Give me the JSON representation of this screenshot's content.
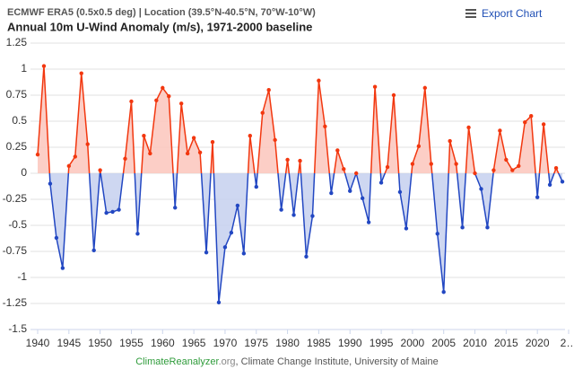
{
  "chart_data": {
    "type": "line",
    "header": "ECMWF ERA5 (0.5x0.5 deg) | Location (39.5°N-40.5°N, 70°W-10°W)",
    "title": "Annual 10m U-Wind Anomaly (m/s), 1971-2000 baseline",
    "export_label": "Export Chart",
    "credit_site": "ClimateReanalyzer",
    "credit_tld": ".org",
    "credit_rest": ", Climate Change Institute, University of Maine",
    "x": [
      1940,
      1941,
      1942,
      1943,
      1944,
      1945,
      1946,
      1947,
      1948,
      1949,
      1950,
      1951,
      1952,
      1953,
      1954,
      1955,
      1956,
      1957,
      1958,
      1959,
      1960,
      1961,
      1962,
      1963,
      1964,
      1965,
      1966,
      1967,
      1968,
      1969,
      1970,
      1971,
      1972,
      1973,
      1974,
      1975,
      1976,
      1977,
      1978,
      1979,
      1980,
      1981,
      1982,
      1983,
      1984,
      1985,
      1986,
      1987,
      1988,
      1989,
      1990,
      1991,
      1992,
      1993,
      1994,
      1995,
      1996,
      1997,
      1998,
      1999,
      2000,
      2001,
      2002,
      2003,
      2004,
      2005,
      2006,
      2007,
      2008,
      2009,
      2010,
      2011,
      2012,
      2013,
      2014,
      2015,
      2016,
      2017,
      2018,
      2019,
      2020,
      2021,
      2022,
      2023,
      2024
    ],
    "values": [
      0.18,
      1.03,
      -0.1,
      -0.62,
      -0.91,
      0.07,
      0.16,
      0.96,
      0.28,
      -0.74,
      0.03,
      -0.38,
      -0.37,
      -0.35,
      0.14,
      0.69,
      -0.58,
      0.36,
      0.19,
      0.7,
      0.82,
      0.74,
      -0.33,
      0.67,
      0.19,
      0.34,
      0.2,
      -0.76,
      0.3,
      -1.24,
      -0.71,
      -0.57,
      -0.31,
      -0.77,
      0.36,
      -0.13,
      0.58,
      0.8,
      0.32,
      -0.35,
      0.13,
      -0.4,
      0.12,
      -0.8,
      -0.41,
      0.89,
      0.45,
      -0.19,
      0.22,
      0.04,
      -0.17,
      0.0,
      -0.24,
      -0.47,
      0.83,
      -0.09,
      0.06,
      0.75,
      -0.18,
      -0.53,
      0.09,
      0.26,
      0.82,
      0.09,
      -0.58,
      -1.14,
      0.31,
      0.09,
      -0.52,
      0.44,
      0.0,
      -0.15,
      -0.52,
      0.03,
      0.41,
      0.13,
      0.03,
      0.07,
      0.49,
      0.55,
      -0.23,
      0.47,
      -0.11,
      0.05,
      -0.08
    ],
    "positive_color": "#f2370f",
    "negative_color": "#2247c2",
    "positive_fill": "#fcc6bc",
    "negative_fill": "#c6d0ee",
    "xlim": [
      1940,
      2025
    ],
    "xticks": [
      1940,
      1945,
      1950,
      1955,
      1960,
      1965,
      1970,
      1975,
      1980,
      1985,
      1990,
      1995,
      2000,
      2005,
      2010,
      2015,
      2020,
      {
        "value": 2025,
        "label": "2…"
      }
    ],
    "ylim": [
      -1.5,
      1.25
    ],
    "yticks": [
      1.25,
      1,
      0.75,
      0.5,
      0.25,
      0,
      -0.25,
      -0.5,
      -0.75,
      -1,
      -1.25,
      -1.5
    ],
    "grid": true
  }
}
